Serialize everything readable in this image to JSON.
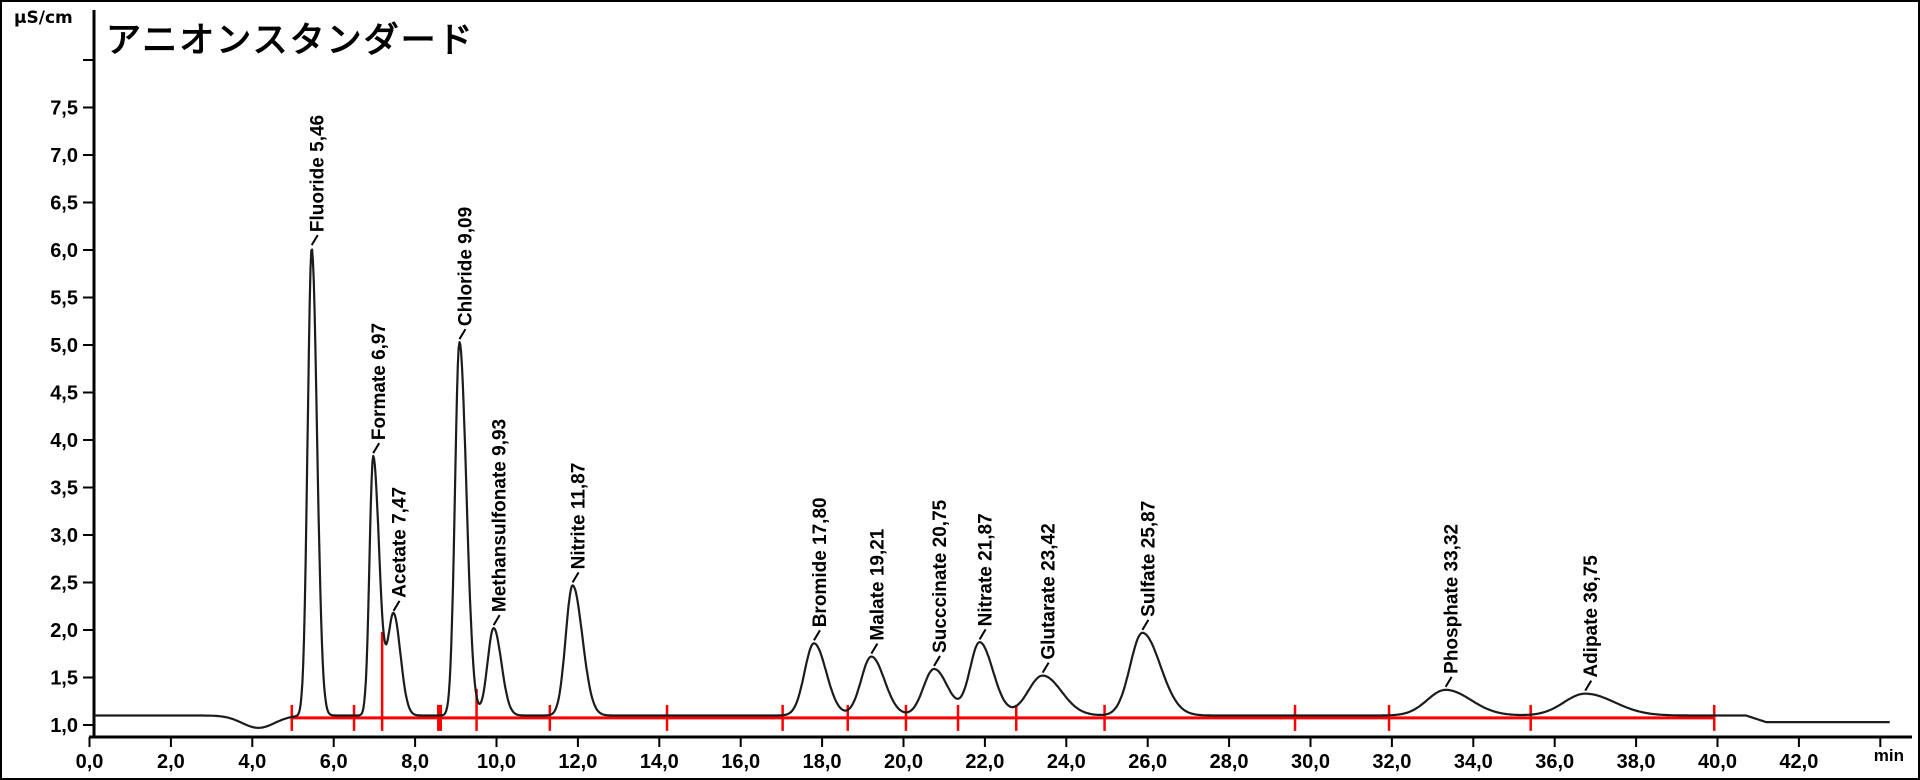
{
  "window": {
    "background": "#ffffff",
    "border_color": "#000000"
  },
  "chart_data": {
    "type": "line",
    "title": "アニオンスタンダード",
    "ylabel": "µS/cm",
    "xlabel": "min",
    "signal_color": "#1c1c1c",
    "axis_color": "#000000",
    "grid": false,
    "legend": "none",
    "xlim": [
      0,
      44.5
    ],
    "ylim_uS": [
      0.8,
      8.4
    ],
    "x_tick_step_min": 2,
    "x_tick_labels": [
      "0,0",
      "2,0",
      "4,0",
      "6,0",
      "8,0",
      "10,0",
      "12,0",
      "14,0",
      "16,0",
      "18,0",
      "20,0",
      "22,0",
      "24,0",
      "26,0",
      "28,0",
      "30,0",
      "32,0",
      "34,0",
      "36,0",
      "38,0",
      "40,0",
      "42,0"
    ],
    "x_tick_values": [
      0,
      2,
      4,
      6,
      8,
      10,
      12,
      14,
      16,
      18,
      20,
      22,
      24,
      26,
      28,
      30,
      32,
      34,
      36,
      38,
      40,
      42
    ],
    "unlabeled_x_tick": 44,
    "y_tick_labels": [
      "1,0",
      "1,5",
      "2,0",
      "2,5",
      "3,0",
      "3,5",
      "4,0",
      "4,5",
      "5,0",
      "5,5",
      "6,0",
      "6,5",
      "7,0",
      "7,5"
    ],
    "y_tick_values": [
      1.0,
      1.5,
      2.0,
      2.5,
      3.0,
      3.5,
      4.0,
      4.5,
      5.0,
      5.5,
      6.0,
      6.5,
      7.0,
      7.5
    ],
    "unlabeled_y_tick": 8.0,
    "baseline_uS": 1.1,
    "baseline_end_level_uS": 1.03,
    "baseline_step_range_min": [
      40.7,
      41.2
    ],
    "trace_start_min": 0.11,
    "trace_end_min": 44.25,
    "system_dip": {
      "t_min": 4.15,
      "depth_uS": 0.13,
      "sigma": 0.4
    },
    "peaks": [
      {
        "name": "Fluoride",
        "label_text": "Fluoride 5,46",
        "rt_min": 5.46,
        "apex_uS": 6.02,
        "sigma_l": 0.1,
        "sigma_r": 0.13
      },
      {
        "name": "Formate",
        "label_text": "Formate 6,97",
        "rt_min": 6.97,
        "apex_uS": 3.83,
        "sigma_l": 0.09,
        "sigma_r": 0.15
      },
      {
        "name": "Acetate",
        "label_text": "Acetate 7,47",
        "rt_min": 7.47,
        "apex_uS": 2.17,
        "sigma_l": 0.14,
        "sigma_r": 0.17
      },
      {
        "name": "Chloride",
        "label_text": "Chloride 9,09",
        "rt_min": 9.09,
        "apex_uS": 5.03,
        "sigma_l": 0.11,
        "sigma_r": 0.17
      },
      {
        "name": "Methansulfonate",
        "label_text": "Methansulfonate 9,93",
        "rt_min": 9.93,
        "apex_uS": 2.02,
        "sigma_l": 0.15,
        "sigma_r": 0.19
      },
      {
        "name": "Nitrite",
        "label_text": "Nitrite 11,87",
        "rt_min": 11.87,
        "apex_uS": 2.47,
        "sigma_l": 0.17,
        "sigma_r": 0.24
      },
      {
        "name": "Bromide",
        "label_text": "Bromide 17,80",
        "rt_min": 17.8,
        "apex_uS": 1.86,
        "sigma_l": 0.23,
        "sigma_r": 0.3
      },
      {
        "name": "Malate",
        "label_text": "Malate 19,21",
        "rt_min": 19.21,
        "apex_uS": 1.72,
        "sigma_l": 0.25,
        "sigma_r": 0.32
      },
      {
        "name": "Succcinate",
        "label_text": "Succcinate 20,75",
        "rt_min": 20.75,
        "apex_uS": 1.59,
        "sigma_l": 0.26,
        "sigma_r": 0.34
      },
      {
        "name": "Nitrate",
        "label_text": "Nitrate 21,87",
        "rt_min": 21.87,
        "apex_uS": 1.87,
        "sigma_l": 0.24,
        "sigma_r": 0.33
      },
      {
        "name": "Glutarate",
        "label_text": "Glutarate 23,42",
        "rt_min": 23.42,
        "apex_uS": 1.52,
        "sigma_l": 0.36,
        "sigma_r": 0.46
      },
      {
        "name": "Sulfate",
        "label_text": "Sulfate 25,87",
        "rt_min": 25.87,
        "apex_uS": 1.97,
        "sigma_l": 0.3,
        "sigma_r": 0.44
      },
      {
        "name": "Phosphate",
        "label_text": "Phosphate 33,32",
        "rt_min": 33.32,
        "apex_uS": 1.37,
        "sigma_l": 0.45,
        "sigma_r": 0.62
      },
      {
        "name": "Adipate",
        "label_text": "Adipate 36,75",
        "rt_min": 36.75,
        "apex_uS": 1.33,
        "sigma_l": 0.52,
        "sigma_r": 0.72
      }
    ],
    "integration": {
      "color": "#fe0000",
      "baseline_level_uS": 1.075,
      "baseline_range_min": [
        4.97,
        39.92
      ],
      "short_tick_marks_min": [
        4.97,
        6.5,
        8.6,
        11.31,
        14.19,
        17.03,
        18.63,
        20.06,
        21.34,
        22.77,
        24.94,
        29.62,
        31.93,
        35.41,
        39.92
      ],
      "wide_tick_min": 8.6,
      "drop_lines": [
        {
          "t_min": 7.19,
          "top_uS": 1.98
        },
        {
          "t_min": 9.51,
          "top_uS": 1.38
        }
      ]
    }
  }
}
